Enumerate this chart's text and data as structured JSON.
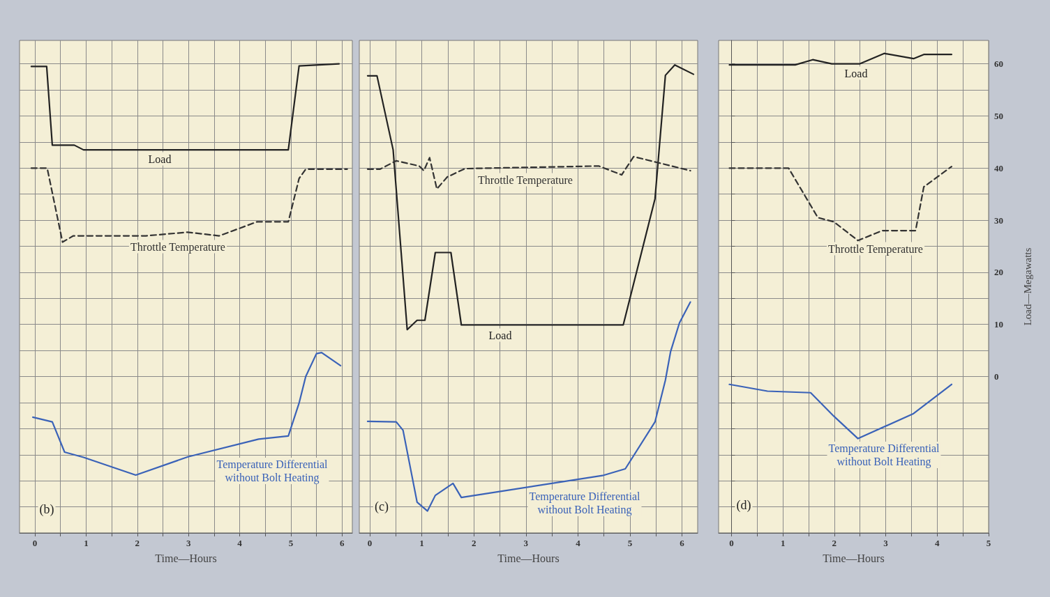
{
  "chart_data": [
    {
      "type": "line",
      "xlabel": "Time—Hours",
      "xlim": [
        -0.3,
        6.2
      ],
      "ylim": [
        -30,
        64.5
      ],
      "tick_labels": "x",
      "grid": true,
      "xticks": [
        0,
        {
          "value": 0.5,
          "label": null
        },
        1,
        {
          "value": 1.5,
          "label": null
        },
        2,
        {
          "value": 2.5,
          "label": null
        },
        3,
        {
          "value": 3.5,
          "label": null
        },
        4,
        {
          "value": 4.5,
          "label": null
        },
        5,
        {
          "value": 5.5,
          "label": null
        },
        6
      ],
      "yticks": [
        {
          "value": -30,
          "label": null
        },
        {
          "value": -25,
          "label": null
        },
        {
          "value": -20,
          "label": null
        },
        {
          "value": -15,
          "label": null
        },
        {
          "value": -10,
          "label": null
        },
        {
          "value": -5,
          "label": null
        },
        0,
        {
          "value": 5,
          "label": null
        },
        10,
        {
          "value": 15,
          "label": null
        },
        20,
        {
          "value": 25,
          "label": null
        },
        30,
        {
          "value": 35,
          "label": null
        },
        40,
        {
          "value": 45,
          "label": null
        },
        50,
        {
          "value": 55,
          "label": null
        },
        60
      ],
      "annotations": [
        "(b)"
      ],
      "series": [
        {
          "name": "Load",
          "color": "#222222",
          "line_style": "solid",
          "x": [
            -0.07,
            0.23,
            0.34,
            0.77,
            0.95,
            4.95,
            5.16,
            5.94
          ],
          "values": [
            59.5,
            59.5,
            44.4,
            44.4,
            43.5,
            43.5,
            59.6,
            60
          ]
        },
        {
          "name": "Throttle Temperature",
          "color": "#333333",
          "line_style": "dashed",
          "x": [
            -0.07,
            0.24,
            0.54,
            0.75,
            2.17,
            2.98,
            3.6,
            4.34,
            4.95,
            5.16,
            5.29,
            6.1
          ],
          "values": [
            40,
            40,
            25.8,
            27,
            27,
            27.7,
            27,
            29.7,
            29.7,
            38,
            39.8,
            39.8
          ]
        },
        {
          "name": "Temperature Differential\nwithout Bolt Heating",
          "color": "#3a62b8",
          "line_style": "solid",
          "x": [
            -0.04,
            0.34,
            0.58,
            0.95,
            1.97,
            2.99,
            4.37,
            4.95,
            5.16,
            5.29,
            5.5,
            5.6,
            5.97
          ],
          "values": [
            -7.8,
            -8.7,
            -14.5,
            -15.5,
            -18.9,
            -15.4,
            -12,
            -11.4,
            -5.1,
            0,
            4.4,
            4.6,
            2.1
          ]
        }
      ]
    },
    {
      "type": "line",
      "xlabel": "Time—Hours",
      "xlim": [
        -0.2,
        6.3
      ],
      "ylim": [
        -30,
        64.5
      ],
      "tick_labels": "x",
      "grid": true,
      "xticks": [
        0,
        {
          "value": 0.5,
          "label": null
        },
        1,
        {
          "value": 1.5,
          "label": null
        },
        2,
        {
          "value": 2.5,
          "label": null
        },
        3,
        {
          "value": 3.5,
          "label": null
        },
        4,
        {
          "value": 4.5,
          "label": null
        },
        5,
        {
          "value": 5.5,
          "label": null
        },
        6
      ],
      "yticks": [
        {
          "value": -30,
          "label": null
        },
        {
          "value": -25,
          "label": null
        },
        {
          "value": -20,
          "label": null
        },
        {
          "value": -15,
          "label": null
        },
        {
          "value": -10,
          "label": null
        },
        {
          "value": -5,
          "label": null
        },
        0,
        {
          "value": 5,
          "label": null
        },
        10,
        {
          "value": 15,
          "label": null
        },
        20,
        {
          "value": 25,
          "label": null
        },
        30,
        {
          "value": 35,
          "label": null
        },
        40,
        {
          "value": 45,
          "label": null
        },
        50,
        {
          "value": 55,
          "label": null
        },
        60
      ],
      "annotations": [
        "(c)"
      ],
      "series": [
        {
          "name": "Load",
          "color": "#222222",
          "line_style": "solid",
          "x": [
            -0.04,
            0.14,
            0.45,
            0.72,
            0.91,
            1.06,
            1.26,
            1.56,
            1.76,
            4.87,
            5.48,
            5.68,
            5.86,
            6.22
          ],
          "values": [
            57.7,
            57.7,
            43.5,
            9,
            10.8,
            10.8,
            23.8,
            23.8,
            9.9,
            9.9,
            34.1,
            57.8,
            59.8,
            58
          ]
        },
        {
          "name": "Throttle Temperature",
          "color": "#333333",
          "line_style": "dashed",
          "x": [
            -0.04,
            0.2,
            0.51,
            0.95,
            1.04,
            1.15,
            1.29,
            1.49,
            1.83,
            4.4,
            4.84,
            5.07,
            6.16
          ],
          "values": [
            39.8,
            39.8,
            41.4,
            40.4,
            39.5,
            42,
            36,
            38.3,
            39.9,
            40.4,
            38.7,
            42.2,
            39.5
          ]
        },
        {
          "name": "Temperature Differential\nwithout Bolt Heating",
          "color": "#3a62b8",
          "line_style": "solid",
          "x": [
            -0.04,
            0.51,
            0.64,
            0.91,
            1.11,
            1.26,
            1.6,
            1.76,
            4.47,
            4.91,
            5.48,
            5.68,
            5.78,
            5.95,
            6.16
          ],
          "values": [
            -8.6,
            -8.7,
            -10.3,
            -24.1,
            -25.8,
            -22.8,
            -20.5,
            -23.2,
            -19,
            -17.7,
            -8.7,
            -0.7,
            4.8,
            10.3,
            14.3
          ]
        }
      ]
    },
    {
      "type": "line",
      "xlabel": "Time—Hours",
      "ylabel": "Load—Megawatts",
      "xlim": [
        -0.25,
        5
      ],
      "ylim": [
        -30,
        64.5
      ],
      "grid": true,
      "xticks": [
        0,
        {
          "value": 0.5,
          "label": null
        },
        1,
        {
          "value": 1.5,
          "label": null
        },
        2,
        {
          "value": 2.5,
          "label": null
        },
        3,
        {
          "value": 3.5,
          "label": null
        },
        4,
        {
          "value": 4.5,
          "label": null
        },
        5
      ],
      "yticks": [
        {
          "value": -30,
          "label": null
        },
        {
          "value": -25,
          "label": null
        },
        {
          "value": -20,
          "label": null
        },
        {
          "value": -15,
          "label": null
        },
        {
          "value": -10,
          "label": null
        },
        {
          "value": -5,
          "label": null
        },
        0,
        {
          "value": 5,
          "label": null
        },
        10,
        {
          "value": 15,
          "label": null
        },
        20,
        {
          "value": 25,
          "label": null
        },
        30,
        {
          "value": 35,
          "label": null
        },
        40,
        {
          "value": 45,
          "label": null
        },
        50,
        {
          "value": 55,
          "label": null
        },
        60
      ],
      "annotations": [
        "(d)"
      ],
      "series": [
        {
          "name": "Load",
          "color": "#222222",
          "line_style": "solid",
          "x": [
            -0.04,
            1.24,
            1.58,
            1.95,
            2.49,
            2.97,
            3.54,
            3.74,
            4.28
          ],
          "values": [
            59.8,
            59.8,
            60.8,
            60,
            60,
            62,
            61,
            61.8,
            61.8
          ]
        },
        {
          "name": "Throttle Temperature",
          "color": "#333333",
          "line_style": "dashed",
          "x": [
            -0.04,
            1.11,
            1.68,
            1.99,
            2.46,
            2.93,
            3.58,
            3.74,
            4.28
          ],
          "values": [
            40,
            40,
            30.5,
            29.7,
            26.1,
            28,
            28,
            36.4,
            40.3
          ]
        },
        {
          "name": "Temperature Differential\nwithout Bolt Heating",
          "color": "#3a62b8",
          "line_style": "solid",
          "x": [
            -0.04,
            0.7,
            1.54,
            1.99,
            2.46,
            3.54,
            4.28
          ],
          "values": [
            -1.5,
            -2.8,
            -3.1,
            -7.6,
            -11.9,
            -7.1,
            -1.5
          ]
        }
      ]
    }
  ]
}
